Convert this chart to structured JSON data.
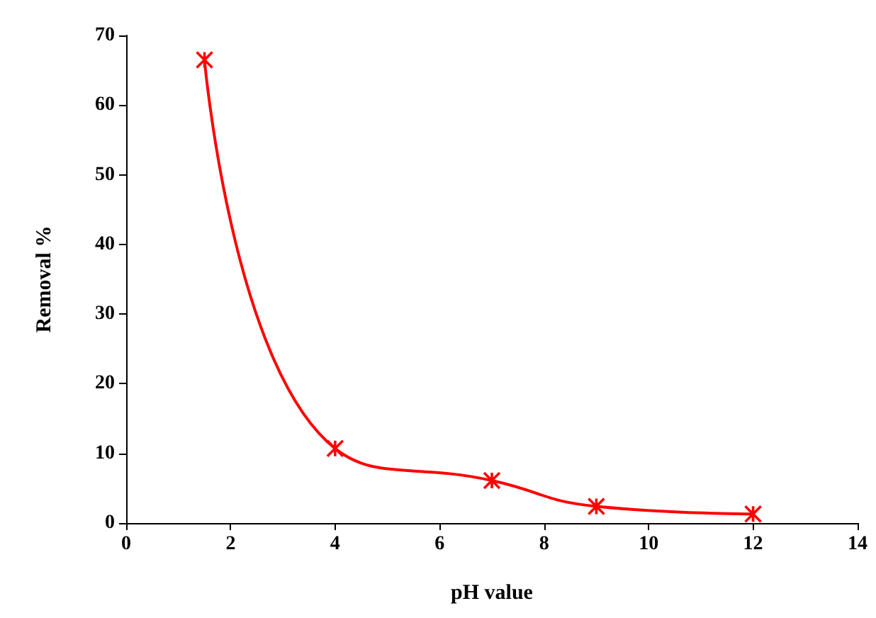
{
  "chart_data": {
    "type": "line",
    "xlabel": "pH value",
    "ylabel": "Removal %",
    "x": [
      1.5,
      4,
      7,
      9,
      12
    ],
    "series": [
      {
        "color": "#ff0000",
        "values": [
          66.5,
          10.7,
          6.1,
          2.4,
          1.3
        ]
      }
    ],
    "xlim": [
      0,
      14
    ],
    "xticks": [
      0,
      2,
      4,
      6,
      8,
      10,
      12,
      14
    ],
    "ylim": [
      0,
      70
    ],
    "yticks": [
      0,
      10,
      20,
      30,
      40,
      50,
      60,
      70
    ],
    "grid": false,
    "marker": "cross",
    "line_style": "solid"
  }
}
